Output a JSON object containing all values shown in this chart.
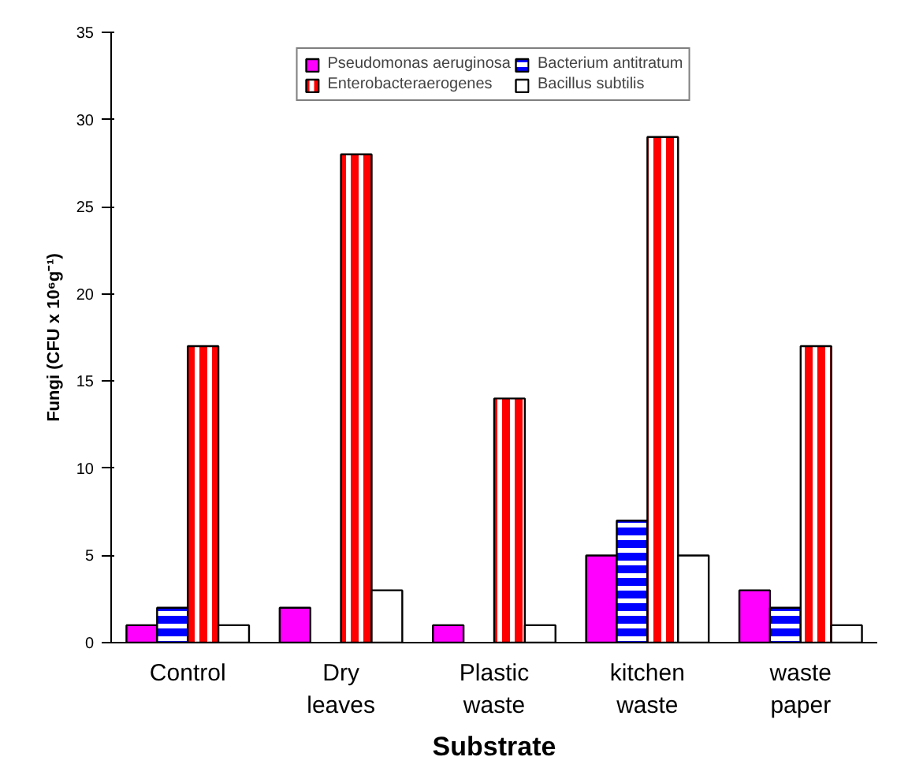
{
  "chart_data": {
    "type": "bar",
    "xlabel": "Substrate",
    "ylabel": "Fungi (CFU x 10⁶g⁻¹)",
    "categories": [
      "Control",
      "Dry leaves",
      "Plastic waste",
      "kitchen waste",
      "waste paper"
    ],
    "series": [
      {
        "name": "Pseudomonas aeruginosa",
        "color": "#ff00ff",
        "values": [
          1,
          2,
          1,
          5,
          3
        ]
      },
      {
        "name": "Bacterium antitratum",
        "color": "#0000ff",
        "values": [
          2,
          null,
          null,
          7,
          2
        ]
      },
      {
        "name": "Enterobacteraerogenes",
        "color": "#ff0000",
        "values": [
          17,
          28,
          14,
          29,
          17
        ]
      },
      {
        "name": "Bacillus subtilis",
        "color": "#ffffff",
        "values": [
          1,
          3,
          1,
          5,
          1
        ]
      }
    ],
    "ylim": [
      0,
      35
    ],
    "yticks": [
      0,
      5,
      10,
      15,
      20,
      25,
      30,
      35
    ],
    "grid": false,
    "legend": "top"
  }
}
